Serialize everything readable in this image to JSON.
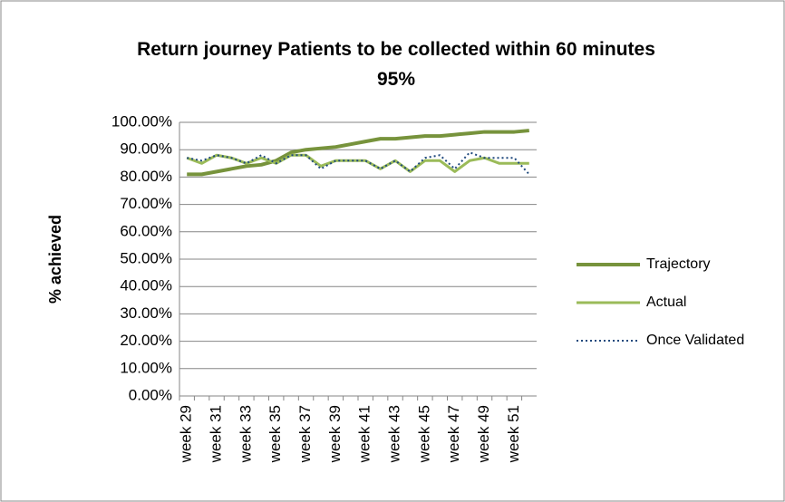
{
  "chart_data": {
    "type": "line",
    "title": "Return journey Patients to be collected within 60 minutes 95%",
    "y_label": "% achieved",
    "categories": [
      "week 29",
      null,
      "week 31",
      null,
      "week 33",
      null,
      "week 35",
      null,
      "week 37",
      null,
      "week 39",
      null,
      "week 41",
      null,
      "week 43",
      null,
      "week 45",
      null,
      "week 47",
      null,
      "week 49",
      null,
      "week 51",
      null
    ],
    "series": [
      {
        "name": "Trajectory",
        "color": "#77933c",
        "style": "solid",
        "width": 4,
        "values": [
          81,
          81,
          82,
          83,
          84,
          84.5,
          86,
          89,
          90,
          90.5,
          91,
          92,
          93,
          94,
          94,
          94.5,
          95,
          95,
          95.5,
          96,
          96.5,
          96.5,
          96.5,
          97
        ]
      },
      {
        "name": "Actual",
        "color": "#9bbb59",
        "style": "solid",
        "width": 3,
        "values": [
          87,
          85,
          88,
          87,
          85,
          87,
          85,
          88,
          88,
          84,
          86,
          86,
          86,
          83,
          86,
          82,
          86,
          86,
          82,
          86,
          87,
          85,
          85,
          85
        ]
      },
      {
        "name": "Once Validated",
        "color": "#1f497d",
        "style": "dotted",
        "width": 2,
        "values": [
          87,
          86,
          88,
          87,
          85,
          88,
          85,
          88,
          88,
          83,
          86,
          86,
          86,
          83,
          86,
          82,
          87,
          88,
          83,
          89,
          87,
          87,
          87,
          81
        ]
      }
    ],
    "ylim": [
      0,
      100
    ],
    "yticks": [
      {
        "value": 0,
        "label": "0.00%"
      },
      {
        "value": 10,
        "label": "10.00%"
      },
      {
        "value": 20,
        "label": "20.00%"
      },
      {
        "value": 30,
        "label": "30.00%"
      },
      {
        "value": 40,
        "label": "40.00%"
      },
      {
        "value": 50,
        "label": "50.00%"
      },
      {
        "value": 60,
        "label": "60.00%"
      },
      {
        "value": 70,
        "label": "70.00%"
      },
      {
        "value": 80,
        "label": "80.00%"
      },
      {
        "value": 90,
        "label": "90.00%"
      },
      {
        "value": 100,
        "label": "100.00%"
      }
    ],
    "grid": true,
    "legend": "right"
  }
}
